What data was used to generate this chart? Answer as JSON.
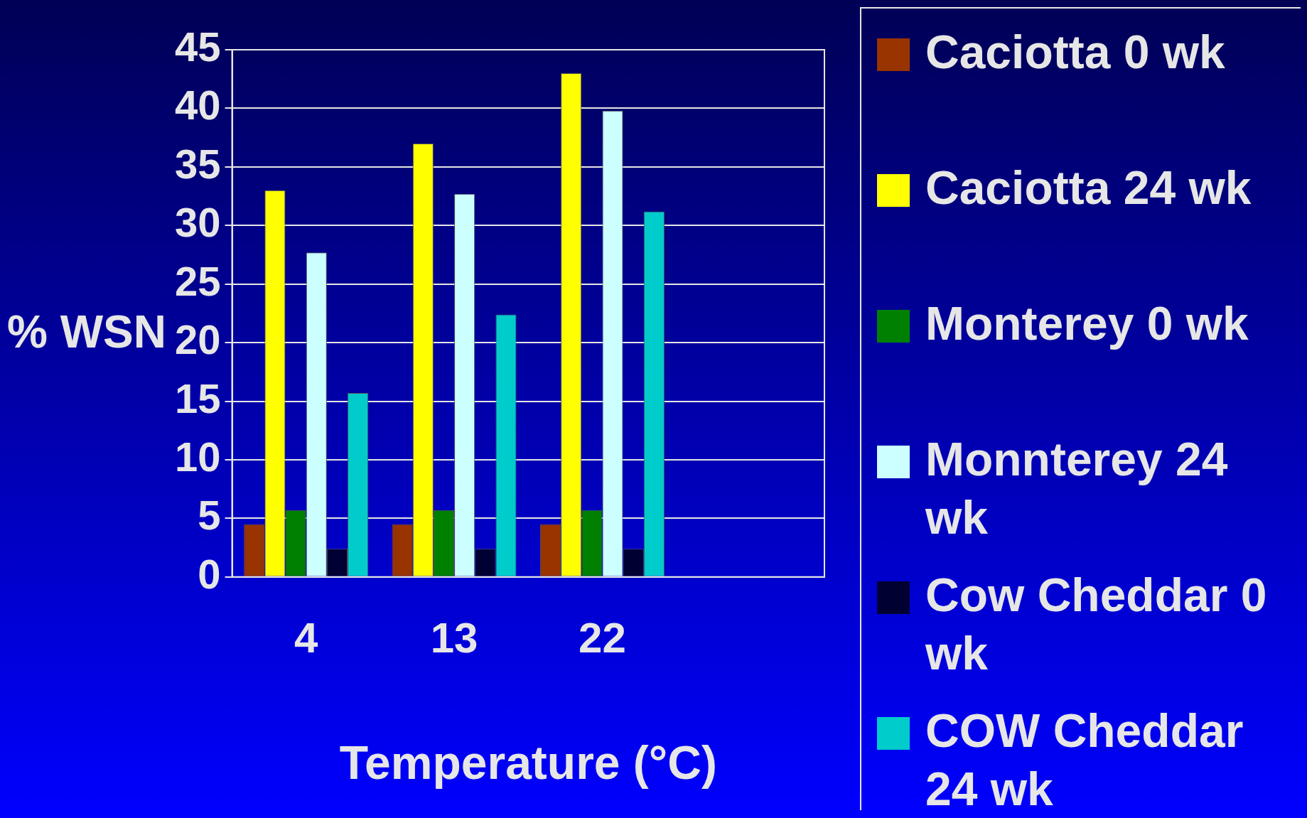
{
  "chart_data": {
    "type": "bar",
    "xlabel": "Temperature (°C)",
    "ylabel": "% WSN",
    "categories": [
      "4",
      "13",
      "22",
      null
    ],
    "series": [
      {
        "name": "Caciotta 0 wk",
        "color": "#993300",
        "values": [
          4.5,
          4.5,
          4.5,
          null
        ]
      },
      {
        "name": "Caciotta 24 wk",
        "color": "#ffff00",
        "values": [
          33,
          37,
          43,
          null
        ]
      },
      {
        "name": "Monterey 0 wk",
        "color": "#008000",
        "values": [
          5.7,
          5.7,
          5.7,
          null
        ]
      },
      {
        "name": "Monnterey 24 wk",
        "color": "#ccffff",
        "values": [
          27.7,
          32.7,
          39.8,
          null
        ]
      },
      {
        "name": "Cow Cheddar 0 wk",
        "color": "#000033",
        "values": [
          2.4,
          2.4,
          2.4,
          null
        ]
      },
      {
        "name": "COW Cheddar 24 wk",
        "color": "#00cccc",
        "values": [
          15.7,
          22.4,
          31.2,
          null
        ]
      }
    ],
    "ylim": [
      0,
      45
    ],
    "yticks": [
      0,
      5,
      10,
      15,
      20,
      25,
      30,
      35,
      40,
      45
    ],
    "grid": "y",
    "legend": "right"
  }
}
